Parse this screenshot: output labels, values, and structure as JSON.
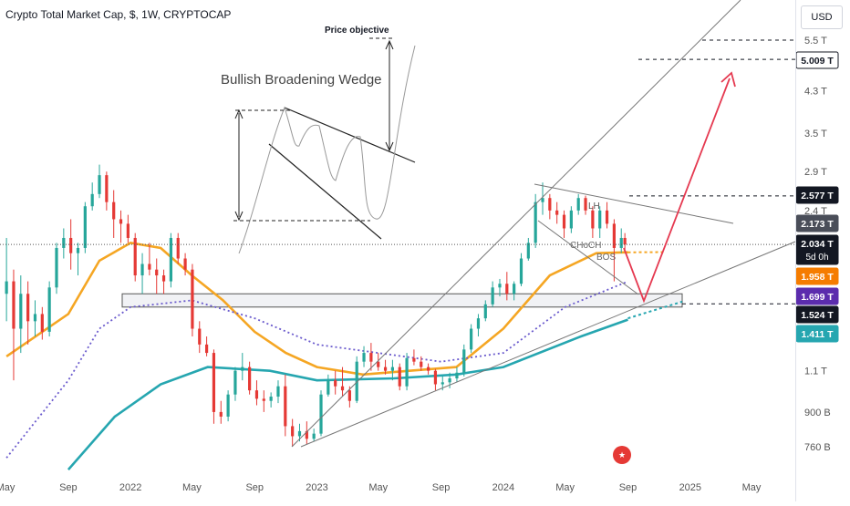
{
  "header": {
    "title": "Crypto Total Market Cap, $, 1W, CRYPTOCAP"
  },
  "currency_button": "USD",
  "flag_icon": "us-flag-icon",
  "chart_data": {
    "type": "candlestick",
    "title": "Crypto Total Market Cap, $, 1W, CRYPTOCAP",
    "y_scale": "log",
    "ylim_trillions": [
      0.68,
      5.9
    ],
    "xlim": [
      "2021-05",
      "2025-08"
    ],
    "x_ticks": [
      {
        "label": "May",
        "date": "2021-05"
      },
      {
        "label": "Sep",
        "date": "2021-09"
      },
      {
        "label": "2022",
        "date": "2022-01"
      },
      {
        "label": "May",
        "date": "2022-05"
      },
      {
        "label": "Sep",
        "date": "2022-09"
      },
      {
        "label": "2023",
        "date": "2023-01"
      },
      {
        "label": "May",
        "date": "2023-05"
      },
      {
        "label": "Sep",
        "date": "2023-09"
      },
      {
        "label": "2024",
        "date": "2024-01"
      },
      {
        "label": "May",
        "date": "2024-05"
      },
      {
        "label": "Sep",
        "date": "2024-09"
      },
      {
        "label": "2025",
        "date": "2025-01"
      },
      {
        "label": "May",
        "date": "2025-05"
      }
    ],
    "y_ticks": [
      {
        "label": "5.5 T",
        "value": 5.5
      },
      {
        "label": "4.3 T",
        "value": 4.3
      },
      {
        "label": "3.5 T",
        "value": 3.5
      },
      {
        "label": "2.9 T",
        "value": 2.9
      },
      {
        "label": "2.4 T",
        "value": 2.4
      },
      {
        "label": "1.1 T",
        "value": 1.1
      },
      {
        "label": "900 B",
        "value": 0.9
      },
      {
        "label": "760 B",
        "value": 0.76
      }
    ],
    "price_labels": [
      {
        "label": "5.009 T",
        "value": 5.009,
        "bg": "#ffffff",
        "fg": "#131722",
        "border": "#131722"
      },
      {
        "label": "2.577 T",
        "value": 2.577,
        "bg": "#131722",
        "fg": "#ffffff"
      },
      {
        "label": "2.173 T",
        "value": 2.173,
        "bg": "#4a4e59",
        "fg": "#ffffff"
      },
      {
        "label": "2.034 T",
        "value": 2.034,
        "bg": "#131722",
        "fg": "#ffffff",
        "sub": "5d 0h"
      },
      {
        "label": "1.958 T",
        "value": 1.958,
        "bg": "#f57c00",
        "fg": "#ffffff"
      },
      {
        "label": "1.699 T",
        "value": 1.699,
        "bg": "#5b2cad",
        "fg": "#ffffff"
      },
      {
        "label": "1.524 T",
        "value": 1.524,
        "bg": "#131722",
        "fg": "#ffffff"
      },
      {
        "label": "1.411 T",
        "value": 1.411,
        "bg": "#26a6b0",
        "fg": "#ffffff"
      }
    ],
    "price_series": [
      [
        "2021-05-03",
        1.6,
        2.1,
        1.4,
        1.7
      ],
      [
        "2021-05-17",
        1.7,
        1.8,
        1.05,
        1.35
      ],
      [
        "2021-05-31",
        1.35,
        1.75,
        1.2,
        1.6
      ],
      [
        "2021-06-14",
        1.6,
        1.7,
        1.25,
        1.4
      ],
      [
        "2021-06-28",
        1.4,
        1.55,
        1.3,
        1.45
      ],
      [
        "2021-07-12",
        1.45,
        1.5,
        1.28,
        1.33
      ],
      [
        "2021-07-26",
        1.33,
        1.7,
        1.3,
        1.65
      ],
      [
        "2021-08-09",
        1.65,
        2.05,
        1.6,
        2.0
      ],
      [
        "2021-08-23",
        2.0,
        2.2,
        1.9,
        2.1
      ],
      [
        "2021-09-06",
        2.1,
        2.3,
        1.8,
        1.95
      ],
      [
        "2021-09-20",
        1.95,
        2.05,
        1.75,
        2.0
      ],
      [
        "2021-10-04",
        2.0,
        2.5,
        1.95,
        2.45
      ],
      [
        "2021-10-18",
        2.45,
        2.75,
        2.4,
        2.6
      ],
      [
        "2021-11-01",
        2.6,
        3.0,
        2.55,
        2.85
      ],
      [
        "2021-11-15",
        2.85,
        2.9,
        2.4,
        2.5
      ],
      [
        "2021-11-29",
        2.5,
        2.65,
        2.1,
        2.3
      ],
      [
        "2021-12-13",
        2.3,
        2.4,
        2.05,
        2.25
      ],
      [
        "2021-12-27",
        2.25,
        2.35,
        2.05,
        2.1
      ],
      [
        "2022-01-10",
        2.1,
        2.15,
        1.7,
        1.75
      ],
      [
        "2022-01-24",
        1.75,
        1.95,
        1.6,
        1.85
      ],
      [
        "2022-02-07",
        1.85,
        2.05,
        1.75,
        1.8
      ],
      [
        "2022-02-21",
        1.8,
        1.9,
        1.6,
        1.75
      ],
      [
        "2022-03-07",
        1.75,
        1.8,
        1.6,
        1.7
      ],
      [
        "2022-03-21",
        1.7,
        2.15,
        1.65,
        2.1
      ],
      [
        "2022-04-04",
        2.1,
        2.15,
        1.85,
        1.9
      ],
      [
        "2022-04-18",
        1.9,
        1.95,
        1.75,
        1.8
      ],
      [
        "2022-05-02",
        1.8,
        1.85,
        1.3,
        1.35
      ],
      [
        "2022-05-16",
        1.35,
        1.4,
        1.2,
        1.25
      ],
      [
        "2022-05-30",
        1.25,
        1.3,
        1.18,
        1.2
      ],
      [
        "2022-06-13",
        1.2,
        1.22,
        0.85,
        0.9
      ],
      [
        "2022-06-27",
        0.9,
        0.95,
        0.85,
        0.88
      ],
      [
        "2022-07-11",
        0.88,
        1.0,
        0.86,
        0.98
      ],
      [
        "2022-07-25",
        0.98,
        1.12,
        0.95,
        1.1
      ],
      [
        "2022-08-08",
        1.1,
        1.2,
        1.05,
        1.12
      ],
      [
        "2022-08-22",
        1.12,
        1.15,
        0.98,
        1.0
      ],
      [
        "2022-09-05",
        1.0,
        1.05,
        0.93,
        0.96
      ],
      [
        "2022-09-19",
        0.96,
        1.0,
        0.9,
        0.95
      ],
      [
        "2022-10-03",
        0.95,
        0.99,
        0.92,
        0.97
      ],
      [
        "2022-10-17",
        0.97,
        1.05,
        0.94,
        1.02
      ],
      [
        "2022-10-31",
        1.02,
        1.08,
        0.8,
        0.84
      ],
      [
        "2022-11-14",
        0.84,
        0.87,
        0.76,
        0.8
      ],
      [
        "2022-11-28",
        0.8,
        0.85,
        0.78,
        0.82
      ],
      [
        "2022-12-12",
        0.82,
        0.86,
        0.77,
        0.79
      ],
      [
        "2022-12-26",
        0.79,
        0.83,
        0.78,
        0.81
      ],
      [
        "2023-01-09",
        0.81,
        1.0,
        0.8,
        0.98
      ],
      [
        "2023-01-23",
        0.98,
        1.08,
        0.97,
        1.05
      ],
      [
        "2023-02-06",
        1.05,
        1.1,
        0.98,
        1.02
      ],
      [
        "2023-02-20",
        1.02,
        1.12,
        0.97,
        1.0
      ],
      [
        "2023-03-06",
        1.0,
        1.02,
        0.92,
        0.95
      ],
      [
        "2023-03-20",
        0.95,
        1.18,
        0.94,
        1.15
      ],
      [
        "2023-04-03",
        1.15,
        1.24,
        1.12,
        1.2
      ],
      [
        "2023-04-17",
        1.2,
        1.26,
        1.1,
        1.15
      ],
      [
        "2023-05-01",
        1.15,
        1.2,
        1.1,
        1.12
      ],
      [
        "2023-05-15",
        1.12,
        1.16,
        1.08,
        1.1
      ],
      [
        "2023-05-29",
        1.1,
        1.16,
        1.05,
        1.12
      ],
      [
        "2023-06-12",
        1.12,
        1.14,
        1.0,
        1.02
      ],
      [
        "2023-06-26",
        1.02,
        1.2,
        1.0,
        1.17
      ],
      [
        "2023-07-10",
        1.17,
        1.22,
        1.13,
        1.15
      ],
      [
        "2023-07-24",
        1.15,
        1.18,
        1.1,
        1.12
      ],
      [
        "2023-08-07",
        1.12,
        1.14,
        1.08,
        1.1
      ],
      [
        "2023-08-21",
        1.1,
        1.11,
        1.0,
        1.03
      ],
      [
        "2023-09-04",
        1.03,
        1.07,
        1.0,
        1.04
      ],
      [
        "2023-09-18",
        1.04,
        1.09,
        1.01,
        1.06
      ],
      [
        "2023-10-02",
        1.06,
        1.12,
        1.04,
        1.09
      ],
      [
        "2023-10-16",
        1.09,
        1.25,
        1.07,
        1.22
      ],
      [
        "2023-10-30",
        1.22,
        1.38,
        1.2,
        1.35
      ],
      [
        "2023-11-13",
        1.35,
        1.45,
        1.3,
        1.42
      ],
      [
        "2023-11-27",
        1.42,
        1.55,
        1.4,
        1.52
      ],
      [
        "2023-12-11",
        1.52,
        1.7,
        1.5,
        1.65
      ],
      [
        "2023-12-25",
        1.65,
        1.72,
        1.58,
        1.68
      ],
      [
        "2024-01-08",
        1.68,
        1.78,
        1.55,
        1.6
      ],
      [
        "2024-01-22",
        1.6,
        1.7,
        1.55,
        1.68
      ],
      [
        "2024-02-05",
        1.68,
        1.95,
        1.66,
        1.9
      ],
      [
        "2024-02-19",
        1.9,
        2.1,
        1.88,
        2.05
      ],
      [
        "2024-03-04",
        2.05,
        2.6,
        2.0,
        2.5
      ],
      [
        "2024-03-18",
        2.5,
        2.75,
        2.35,
        2.55
      ],
      [
        "2024-04-01",
        2.55,
        2.6,
        2.3,
        2.4
      ],
      [
        "2024-04-15",
        2.4,
        2.5,
        2.25,
        2.35
      ],
      [
        "2024-04-29",
        2.35,
        2.4,
        2.1,
        2.2
      ],
      [
        "2024-05-13",
        2.2,
        2.45,
        2.15,
        2.4
      ],
      [
        "2024-05-27",
        2.4,
        2.6,
        2.35,
        2.55
      ],
      [
        "2024-06-10",
        2.55,
        2.58,
        2.35,
        2.4
      ],
      [
        "2024-06-24",
        2.4,
        2.45,
        2.1,
        2.2
      ],
      [
        "2024-07-08",
        2.2,
        2.45,
        2.1,
        2.4
      ],
      [
        "2024-07-22",
        2.4,
        2.5,
        2.2,
        2.25
      ],
      [
        "2024-08-05",
        2.25,
        2.3,
        1.7,
        2.0
      ],
      [
        "2024-08-19",
        2.0,
        2.2,
        1.95,
        2.1
      ],
      [
        "2024-08-26",
        2.1,
        2.15,
        1.98,
        2.034
      ]
    ],
    "moving_averages": [
      {
        "name": "MA orange",
        "color": "#f5a623",
        "points": [
          [
            "2021-05-03",
            1.18
          ],
          [
            "2021-09-01",
            1.45
          ],
          [
            "2021-11-01",
            1.88
          ],
          [
            "2022-01-01",
            2.05
          ],
          [
            "2022-03-01",
            2.0
          ],
          [
            "2022-05-01",
            1.75
          ],
          [
            "2022-07-01",
            1.55
          ],
          [
            "2022-09-01",
            1.33
          ],
          [
            "2022-11-01",
            1.2
          ],
          [
            "2023-01-01",
            1.12
          ],
          [
            "2023-04-01",
            1.08
          ],
          [
            "2023-07-01",
            1.1
          ],
          [
            "2023-10-01",
            1.12
          ],
          [
            "2024-01-01",
            1.35
          ],
          [
            "2024-04-01",
            1.75
          ],
          [
            "2024-07-01",
            1.95
          ],
          [
            "2024-09-01",
            1.958
          ]
        ]
      },
      {
        "name": "MA purple",
        "color": "#6a5acd",
        "dotted": true,
        "points": [
          [
            "2021-05-03",
            0.72
          ],
          [
            "2021-09-01",
            1.05
          ],
          [
            "2021-11-01",
            1.35
          ],
          [
            "2022-01-01",
            1.5
          ],
          [
            "2022-05-01",
            1.55
          ],
          [
            "2022-09-01",
            1.42
          ],
          [
            "2023-01-01",
            1.25
          ],
          [
            "2023-05-01",
            1.2
          ],
          [
            "2023-09-01",
            1.15
          ],
          [
            "2024-01-01",
            1.2
          ],
          [
            "2024-05-01",
            1.5
          ],
          [
            "2024-09-01",
            1.699
          ]
        ]
      },
      {
        "name": "MA teal",
        "color": "#26a6b0",
        "points": [
          [
            "2021-09-01",
            0.68
          ],
          [
            "2021-12-01",
            0.88
          ],
          [
            "2022-03-01",
            1.03
          ],
          [
            "2022-06-01",
            1.12
          ],
          [
            "2022-10-01",
            1.1
          ],
          [
            "2023-01-01",
            1.05
          ],
          [
            "2023-06-01",
            1.06
          ],
          [
            "2023-10-01",
            1.08
          ],
          [
            "2024-01-01",
            1.12
          ],
          [
            "2024-06-01",
            1.3
          ],
          [
            "2024-09-01",
            1.411
          ]
        ]
      }
    ],
    "annotations": [
      {
        "text": "Bullish Broadening Wedge"
      },
      {
        "text": "Price objective"
      },
      {
        "text": "LH"
      },
      {
        "text": "CHoCH"
      },
      {
        "text": "BOS"
      }
    ],
    "horizontal_levels": [
      5.5,
      5.009,
      2.577,
      1.524
    ],
    "support_zone": [
      1.5,
      1.6
    ],
    "projection": {
      "down_to": 1.5,
      "up_to": 4.9
    }
  }
}
